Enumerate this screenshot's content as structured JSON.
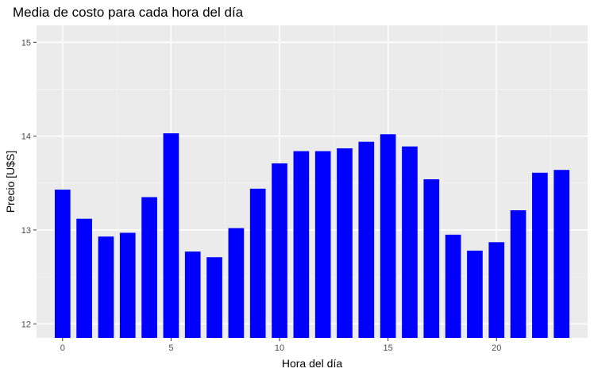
{
  "chart_data": {
    "type": "bar",
    "title": "Media de costo para cada hora del día",
    "xlabel": "Hora del día",
    "ylabel": "Precio [U$S]",
    "x": [
      0,
      1,
      2,
      3,
      4,
      5,
      6,
      7,
      8,
      9,
      10,
      11,
      12,
      13,
      14,
      15,
      16,
      17,
      18,
      19,
      20,
      21,
      22,
      23
    ],
    "values": [
      13.43,
      13.12,
      12.93,
      12.97,
      13.35,
      14.03,
      12.77,
      12.71,
      13.02,
      13.44,
      13.71,
      13.84,
      13.84,
      13.87,
      13.94,
      14.02,
      13.89,
      13.54,
      12.95,
      12.78,
      12.87,
      13.21,
      13.61,
      13.64
    ],
    "xlim": [
      -1.2,
      24.2
    ],
    "ylim": [
      11.85,
      15.18
    ],
    "x_ticks": [
      0,
      5,
      10,
      15,
      20
    ],
    "y_ticks": [
      12,
      13,
      14,
      15
    ],
    "x_tick_labels": [
      "0",
      "5",
      "10",
      "15",
      "20"
    ],
    "y_tick_labels": [
      "12",
      "13",
      "14",
      "15"
    ],
    "grid": true,
    "legend": "none",
    "colors": {
      "bar": "#0000ff",
      "panel": "#ebebeb",
      "grid_major": "#ffffff",
      "grid_minor": "#f5f5f5",
      "tick": "#333333"
    }
  }
}
